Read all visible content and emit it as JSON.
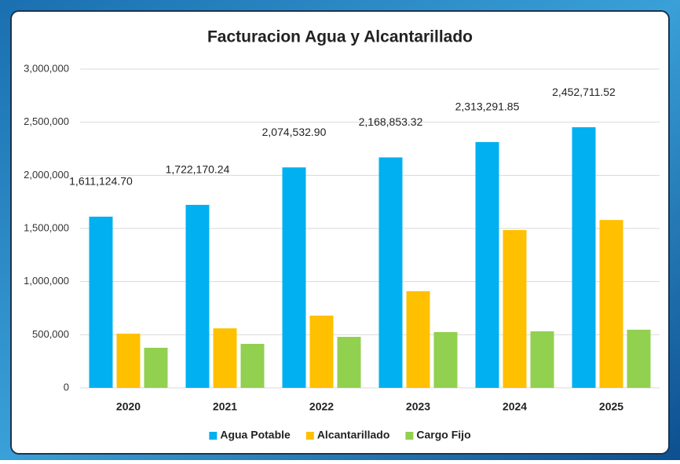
{
  "chart_data": {
    "type": "bar",
    "title": "Facturacion Agua y Alcantarillado",
    "categories": [
      "2020",
      "2021",
      "2022",
      "2023",
      "2024",
      "2025"
    ],
    "series": [
      {
        "name": "Agua Potable",
        "color": "#00b0f0",
        "values": [
          1611124.7,
          1722170.24,
          2074532.9,
          2168853.32,
          2313291.85,
          2452711.52
        ],
        "value_labels": [
          "1,611,124.70",
          "1,722,170.24",
          "2,074,532.90",
          "2,168,853.32",
          "2,313,291.85",
          "2,452,711.52"
        ]
      },
      {
        "name": "Alcantarillado",
        "color": "#ffc000",
        "values": [
          510000,
          560000,
          680000,
          910000,
          1485000,
          1580000
        ]
      },
      {
        "name": "Cargo Fijo",
        "color": "#92d050",
        "values": [
          377000,
          414000,
          480000,
          525000,
          532000,
          547000
        ]
      }
    ],
    "ylim": [
      0,
      3000000
    ],
    "yticks": [
      0,
      {
        "value": 500000,
        "label": "500,000"
      },
      {
        "value": 1000000,
        "label": "1,000,000"
      },
      {
        "value": 1500000,
        "label": "1,500,000"
      },
      {
        "value": 2000000,
        "label": "2,000,000"
      },
      {
        "value": 2500000,
        "label": "2,500,000"
      },
      {
        "value": 3000000,
        "label": "3,000,000"
      }
    ],
    "grid": true,
    "legend": "bottom"
  }
}
